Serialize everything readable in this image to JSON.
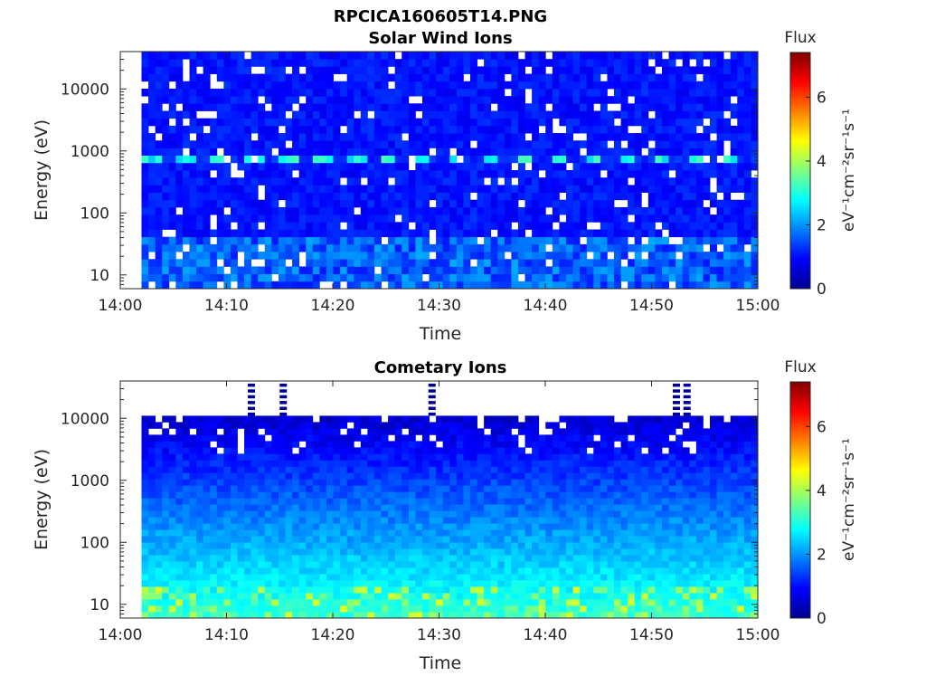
{
  "figure": {
    "title": "RPCICA160605T14.PNG"
  },
  "colorbar": {
    "title": "Flux",
    "unit_label": "eV⁻¹cm⁻²sr⁻¹s⁻¹",
    "ticks": [
      "0",
      "2",
      "4",
      "6"
    ],
    "range": [
      0,
      7.4
    ],
    "colormap": "jet"
  },
  "chart_data": [
    {
      "type": "heatmap",
      "title": "Solar Wind Ions",
      "xlabel": "Time",
      "ylabel": "Energy (eV)",
      "x_ticks": [
        "14:00",
        "14:10",
        "14:20",
        "14:30",
        "14:40",
        "14:50",
        "15:00"
      ],
      "x_range": [
        "14:00",
        "15:00"
      ],
      "y_scale": "log",
      "y_ticks": [
        "10",
        "100",
        "1000",
        "10000"
      ],
      "y_range": [
        6,
        40000
      ],
      "data_start": "14:02",
      "features": {
        "background_flux": 0.8,
        "low_energy_band": {
          "energy_range": [
            6,
            40
          ],
          "flux": 1.8
        },
        "peak_band": {
          "energy": 750,
          "flux": 3.0,
          "pulse_period_minutes": 3.2
        }
      }
    },
    {
      "type": "heatmap",
      "title": "Cometary Ions",
      "xlabel": "Time",
      "ylabel": "Energy (eV)",
      "x_ticks": [
        "14:00",
        "14:10",
        "14:20",
        "14:30",
        "14:40",
        "14:50",
        "15:00"
      ],
      "x_range": [
        "14:00",
        "15:00"
      ],
      "y_scale": "log",
      "y_ticks": [
        "10",
        "100",
        "1000",
        "10000"
      ],
      "y_range": [
        6,
        40000
      ],
      "data_start": "14:02",
      "data_top_energy": 11000,
      "features": {
        "background_flux": 0.3,
        "low_energy_flux": 2.6,
        "peak_flux": 4.0,
        "high_energy_spikes": [
          "14:12",
          "14:15",
          "14:29",
          "14:52",
          "14:53"
        ]
      }
    }
  ]
}
